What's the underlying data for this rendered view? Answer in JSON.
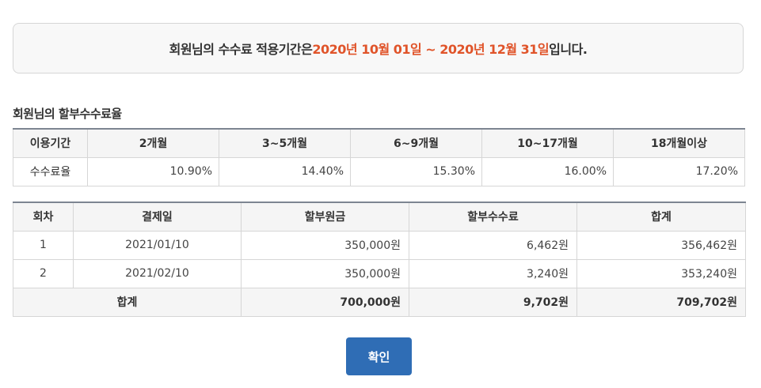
{
  "notice": {
    "prefix": "회원님의 수수료 적용기간은 ",
    "period": "2020년 10월 01일 ~ 2020년 12월 31일",
    "suffix": "입니다."
  },
  "rate_section": {
    "title": "회원님의 할부수수료율",
    "header_label": "이용기간",
    "row_label": "수수료율",
    "periods": [
      "2개월",
      "3~5개월",
      "6~9개월",
      "10~17개월",
      "18개월이상"
    ],
    "rates": [
      "10.90%",
      "14.40%",
      "15.30%",
      "16.00%",
      "17.20%"
    ]
  },
  "schedule": {
    "headers": [
      "회차",
      "결제일",
      "할부원금",
      "할부수수료",
      "합계"
    ],
    "rows": [
      {
        "no": "1",
        "date": "2021/01/10",
        "principal": "350,000원",
        "fee": "6,462원",
        "total": "356,462원"
      },
      {
        "no": "2",
        "date": "2021/02/10",
        "principal": "350,000원",
        "fee": "3,240원",
        "total": "353,240원"
      }
    ],
    "total_row": {
      "label": "합계",
      "principal": "700,000원",
      "fee": "9,702원",
      "total": "709,702원"
    }
  },
  "confirm_label": "확인",
  "colors": {
    "accent": "#e0542a",
    "button": "#2f6db5",
    "table_top_border": "#7d8591"
  }
}
